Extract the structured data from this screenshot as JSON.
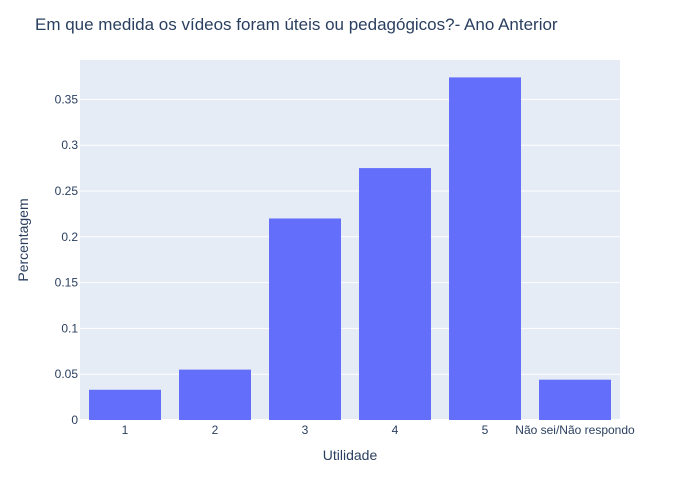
{
  "chart_data": {
    "type": "bar",
    "title": "Em que medida os vídeos foram úteis ou pedagógicos?- Ano Anterior",
    "xlabel": "Utilidade",
    "ylabel": "Percentagem",
    "categories": [
      "1",
      "2",
      "3",
      "4",
      "5",
      "Não sei/Não respondo"
    ],
    "values": [
      0.033,
      0.055,
      0.22,
      0.275,
      0.374,
      0.044
    ],
    "ylim": [
      0,
      0.393
    ],
    "yticks": [
      0,
      0.05,
      0.1,
      0.15,
      0.2,
      0.25,
      0.3,
      0.35
    ],
    "ytick_labels": [
      "0",
      "0.05",
      "0.1",
      "0.15",
      "0.2",
      "0.25",
      "0.3",
      "0.35"
    ],
    "grid": true,
    "legend": "none",
    "colors": {
      "bar": "#636efa",
      "plot_background": "#e5ecf6",
      "text": "#2a3f5f",
      "grid": "#ffffff"
    }
  }
}
